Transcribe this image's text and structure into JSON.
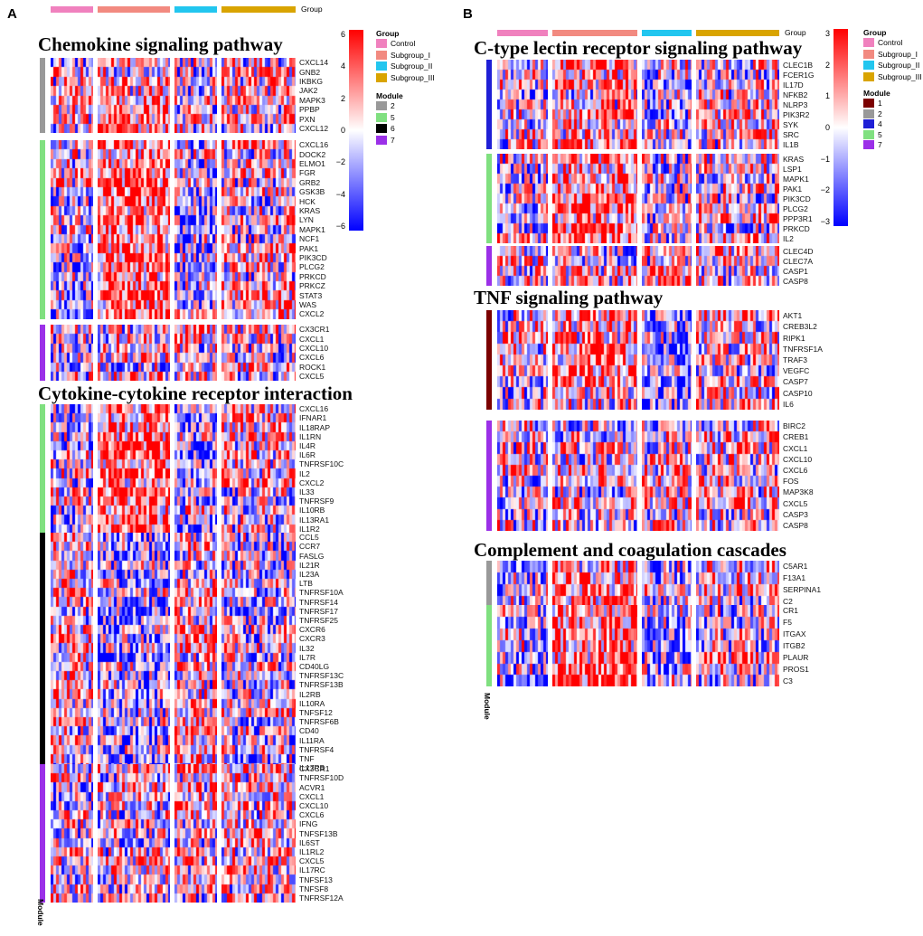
{
  "figure": {
    "panel_a_label": "A",
    "panel_b_label": "B",
    "group_label": "Group",
    "module_label": "Module"
  },
  "colors": {
    "control": "#f081be",
    "subgroup_i": "#f28a80",
    "subgroup_ii": "#22c6ef",
    "subgroup_iii": "#d9a400",
    "module_1": "#7b0000",
    "module_2": "#999999",
    "module_4": "#1f1fd6",
    "module_5": "#80e080",
    "module_6": "#000000",
    "module_7": "#9b30e8",
    "heat_low": "#0000ff",
    "heat_mid": "#ffffff",
    "heat_high": "#ff0000"
  },
  "legend_a": {
    "group_title": "Group",
    "groups": [
      "Control",
      "Subgroup_I",
      "Subgroup_II",
      "Subgroup_III"
    ],
    "module_title": "Module",
    "modules": [
      "2",
      "5",
      "6",
      "7"
    ],
    "color_ticks": [
      "6",
      "4",
      "2",
      "0",
      "−2",
      "−4",
      "−6"
    ]
  },
  "legend_b": {
    "group_title": "Group",
    "groups": [
      "Control",
      "Subgroup_I",
      "Subgroup_II",
      "Subgroup_III"
    ],
    "module_title": "Module",
    "modules": [
      "1",
      "2",
      "4",
      "5",
      "7"
    ],
    "color_ticks": [
      "3",
      "2",
      "1",
      "0",
      "−1",
      "−2",
      "−3"
    ]
  },
  "chart_data": [
    {
      "type": "heatmap",
      "panel": "A",
      "title": "Chemokine signaling pathway",
      "columns_groups": [
        "Control",
        "Subgroup_I",
        "Subgroup_II",
        "Subgroup_III"
      ],
      "color_range": [
        -6,
        6
      ],
      "blocks": [
        {
          "module": "2",
          "genes": [
            "CXCL14",
            "GNB2",
            "IKBKG",
            "JAK2",
            "MAPK3",
            "PPBP",
            "PXN",
            "CXCL12"
          ]
        },
        {
          "module": "5",
          "genes": [
            "CXCL16",
            "DOCK2",
            "ELMO1",
            "FGR",
            "GRB2",
            "GSK3B",
            "HCK",
            "KRAS",
            "LYN",
            "MAPK1",
            "NCF1",
            "PAK1",
            "PIK3CD",
            "PLCG2",
            "PRKCD",
            "PRKCZ",
            "STAT3",
            "WAS",
            "CXCL2"
          ]
        },
        {
          "module": "7",
          "genes": [
            "CX3CR1",
            "CXCL1",
            "CXCL10",
            "CXCL6",
            "ROCK1",
            "CXCL5"
          ]
        }
      ]
    },
    {
      "type": "heatmap",
      "panel": "A",
      "title": "Cytokine-cytokine receptor interaction",
      "columns_groups": [
        "Control",
        "Subgroup_I",
        "Subgroup_II",
        "Subgroup_III"
      ],
      "color_range": [
        -6,
        6
      ],
      "blocks": [
        {
          "module": "5",
          "genes": [
            "CXCL16",
            "IFNAR1",
            "IL18RAP",
            "IL1RN",
            "IL4R",
            "IL6R",
            "TNFRSF10C",
            "IL2",
            "CXCL2",
            "IL33",
            "TNFRSF9",
            "IL10RB",
            "IL13RA1",
            "IL1R2"
          ]
        },
        {
          "module": "6",
          "genes": [
            "CCL5",
            "CCR7",
            "FASLG",
            "IL21R",
            "IL23A",
            "LTB",
            "TNFRSF10A",
            "TNFRSF14",
            "TNFRSF17",
            "TNFRSF25",
            "CXCR6",
            "CXCR3",
            "IL32",
            "IL7R",
            "CD40LG",
            "TNFRSF13C",
            "TNFRSF13B",
            "IL2RB",
            "IL10RA",
            "TNFSF12",
            "TNFRSF6B",
            "CD40",
            "IL11RA",
            "TNFRSF4",
            "TNF",
            "IL17RB"
          ]
        },
        {
          "module": "7",
          "genes": [
            "CX3CR1",
            "TNFRSF10D",
            "ACVR1",
            "CXCL1",
            "CXCL10",
            "CXCL6",
            "IFNG",
            "TNFSF13B",
            "IL6ST",
            "IL1RL2",
            "CXCL5",
            "IL17RC",
            "TNFSF13",
            "TNFSF8",
            "TNFRSF12A"
          ]
        }
      ]
    },
    {
      "type": "heatmap",
      "panel": "B",
      "title": "C-type lectin receptor signaling pathway",
      "columns_groups": [
        "Control",
        "Subgroup_I",
        "Subgroup_II",
        "Subgroup_III"
      ],
      "color_range": [
        -3,
        3
      ],
      "blocks": [
        {
          "module": "4",
          "genes": [
            "CLEC1B",
            "FCER1G",
            "IL17D",
            "NFKB2",
            "NLRP3",
            "PIK3R2",
            "SYK",
            "SRC",
            "IL1B"
          ]
        },
        {
          "module": "5",
          "genes": [
            "KRAS",
            "LSP1",
            "MAPK1",
            "PAK1",
            "PIK3CD",
            "PLCG2",
            "PPP3R1",
            "PRKCD",
            "IL2"
          ]
        },
        {
          "module": "7",
          "genes": [
            "CLEC4D",
            "CLEC7A",
            "CASP1",
            "CASP8"
          ]
        }
      ]
    },
    {
      "type": "heatmap",
      "panel": "B",
      "title": "TNF signaling pathway",
      "columns_groups": [
        "Control",
        "Subgroup_I",
        "Subgroup_II",
        "Subgroup_III"
      ],
      "color_range": [
        -3,
        3
      ],
      "blocks": [
        {
          "module": "1",
          "genes": [
            "AKT1",
            "CREB3L2",
            "RIPK1",
            "TNFRSF1A",
            "TRAF3",
            "VEGFC",
            "CASP7",
            "CASP10",
            "IL6"
          ]
        },
        {
          "module": "7",
          "genes": [
            "BIRC2",
            "CREB1",
            "CXCL1",
            "CXCL10",
            "CXCL6",
            "FOS",
            "MAP3K8",
            "CXCL5",
            "CASP3",
            "CASP8"
          ]
        }
      ]
    },
    {
      "type": "heatmap",
      "panel": "B",
      "title": "Complement and coagulation cascades",
      "columns_groups": [
        "Control",
        "Subgroup_I",
        "Subgroup_II",
        "Subgroup_III"
      ],
      "color_range": [
        -3,
        3
      ],
      "blocks": [
        {
          "module": "2",
          "genes": [
            "C5AR1",
            "F13A1",
            "SERPINA1",
            "C2"
          ]
        },
        {
          "module": "5",
          "genes": [
            "CR1",
            "F5",
            "ITGAX",
            "ITGB2",
            "PLAUR",
            "PROS1",
            "C3"
          ]
        }
      ]
    }
  ]
}
